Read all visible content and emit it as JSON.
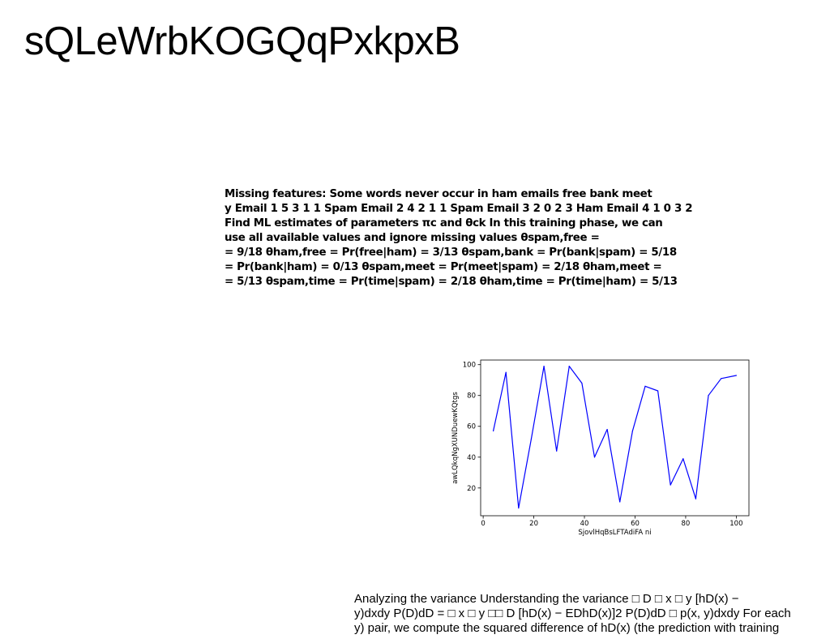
{
  "page": {
    "title": "sQLeWrbKOGQqPxkpxB"
  },
  "paragraph_1": {
    "lines": [
      "Missing features: Some words never occur in ham emails free bank meet",
      "y Email 1 5 3 1 1 Spam Email 2 4 2 1 1 Spam Email 3 2 0 2 3 Ham Email 4 1 0 3 2",
      "Find ML estimates of parameters πc and θck In this training phase, we can",
      "use all available values and ignore missing values θspam,free =",
      "= 9/18 θham,free = Pr(free|ham) = 3/13 θspam,bank = Pr(bank|spam) = 5/18",
      "= Pr(bank|ham) = 0/13 θspam,meet = Pr(meet|spam) = 2/18 θham,meet =",
      "= 5/13 θspam,time = Pr(time|spam) = 2/18 θham,time = Pr(time|ham) = 5/13"
    ]
  },
  "chart_data": {
    "type": "line",
    "title": "",
    "xlabel": "SjovlHqBsLFTAdiFA ni",
    "ylabel": "awLQkqNgXUNDuewKQtgs",
    "xlim": [
      -1,
      105
    ],
    "ylim": [
      2,
      103
    ],
    "xticks": [
      0,
      20,
      40,
      60,
      80,
      100
    ],
    "yticks": [
      20,
      40,
      60,
      80,
      100
    ],
    "grid": false,
    "line_color": "#0000ff",
    "x": [
      4,
      9,
      14,
      19,
      24,
      29,
      34,
      39,
      44,
      49,
      54,
      59,
      64,
      69,
      74,
      79,
      84,
      89,
      94,
      100
    ],
    "y": [
      57,
      95,
      7,
      52,
      99,
      44,
      99,
      88,
      40,
      58,
      11,
      57,
      86,
      83,
      22,
      39,
      13,
      80,
      91,
      93
    ]
  },
  "paragraph_2": {
    "lines": [
      "Analyzing the variance Understanding the variance □ D □ x □ y [hD(x) −",
      "y)dxdy P(D)dD = □ x □ y □□ D [hD(x) − EDhD(x)]2 P(D)dD □ p(x, y)dxdy For each",
      "y) pair, we compute the squared difference of hD(x) (the prediction with training"
    ]
  }
}
